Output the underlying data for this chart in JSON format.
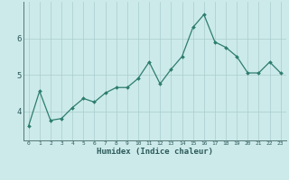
{
  "xlabel": "Humidex (Indice chaleur)",
  "ylabel": "",
  "x": [
    0,
    1,
    2,
    3,
    4,
    5,
    6,
    7,
    8,
    9,
    10,
    11,
    12,
    13,
    14,
    15,
    16,
    17,
    18,
    19,
    20,
    21,
    22,
    23
  ],
  "y": [
    3.6,
    4.55,
    3.75,
    3.8,
    4.1,
    4.35,
    4.25,
    4.5,
    4.65,
    4.65,
    4.9,
    5.35,
    4.75,
    5.15,
    5.5,
    6.3,
    6.65,
    5.9,
    5.75,
    5.5,
    5.05,
    5.05,
    5.35,
    5.05
  ],
  "line_color": "#2d7d6e",
  "marker": "D",
  "marker_size": 2.0,
  "line_width": 0.9,
  "bg_color": "#cceaea",
  "grid_color": "#aacccc",
  "axis_color": "#557777",
  "tick_label_color": "#2d5a5a",
  "ylim": [
    3.2,
    7.0
  ],
  "yticks": [
    4,
    5,
    6
  ],
  "xlim": [
    -0.5,
    23.5
  ],
  "figsize": [
    3.2,
    2.0
  ],
  "dpi": 100
}
